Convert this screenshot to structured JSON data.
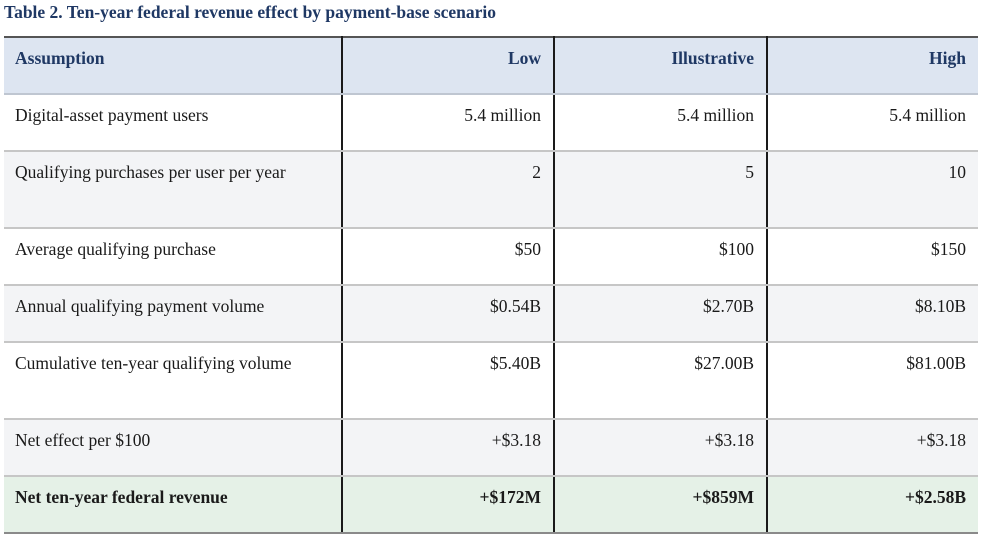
{
  "caption": "Table 2. Ten-year federal revenue effect by payment-base scenario",
  "table": {
    "headers": [
      "Assumption",
      "Low",
      "Illustrative",
      "High"
    ],
    "rows": [
      [
        "Digital-asset payment users",
        "5.4 million",
        "5.4 million",
        "5.4 million"
      ],
      [
        "Qualifying purchases per user per year",
        "2",
        "5",
        "10"
      ],
      [
        "Average qualifying purchase",
        "$50",
        "$100",
        "$150"
      ],
      [
        "Annual qualifying payment volume",
        "$0.54B",
        "$2.70B",
        "$8.10B"
      ],
      [
        "Cumulative ten-year qualifying volume",
        "$5.40B",
        "$27.00B",
        "$81.00B"
      ],
      [
        "Net effect per $100",
        "+$3.18",
        "+$3.18",
        "+$3.18"
      ],
      [
        "Net ten-year federal revenue",
        "+$172M",
        "+$859M",
        "+$2.58B"
      ]
    ]
  },
  "colors": {
    "header_background": "#dde5f1",
    "header_text": "#1f3864",
    "striped_row": "#f3f4f6",
    "total_row": "#e5f1e7"
  }
}
